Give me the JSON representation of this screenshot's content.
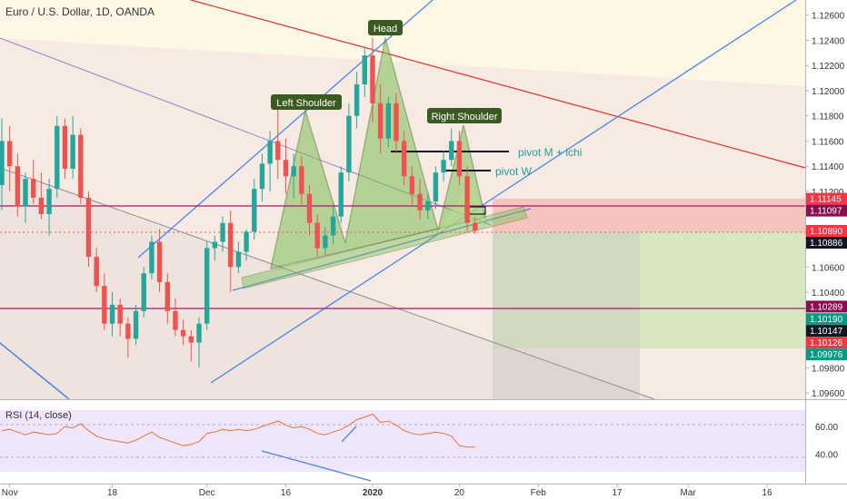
{
  "header": {
    "symbol_title": "Euro / U.S. Dollar, 1D, OANDA"
  },
  "rsi_panel": {
    "title": "RSI (14, close)",
    "ticks": [
      "60.00",
      "40.00"
    ],
    "tick_values": [
      60,
      40
    ],
    "range": [
      27,
      72
    ]
  },
  "x_axis": {
    "labels": [
      "Nov",
      "18",
      "Dec",
      "16",
      "2020",
      "20",
      "Feb",
      "17",
      "Mar",
      "16"
    ],
    "label_bars": [
      1,
      14,
      26,
      36,
      47,
      58,
      68,
      78,
      87,
      97
    ],
    "bold": [
      "2020"
    ]
  },
  "annotations": {
    "head": "Head",
    "left_shoulder": "Left Shoulder",
    "right_shoulder": "Right Shoulder",
    "pivot_m": "pivot M + ichi",
    "pivot_w": "pivot W"
  },
  "price_axis": {
    "ticks": [
      "1.12600",
      "1.12400",
      "1.12200",
      "1.12000",
      "1.11800",
      "1.11600",
      "1.11400",
      "1.11200",
      "1.10600",
      "1.10400",
      "1.09800",
      "1.09600"
    ],
    "badges": [
      {
        "label": "1.11145",
        "value": 1.11145,
        "color": "#f23645"
      },
      {
        "label": "1.11097",
        "value": 1.11097,
        "color": "#880e4f"
      },
      {
        "label": "1.10890",
        "value": 1.1089,
        "color": "#f23645"
      },
      {
        "label": "1.10886",
        "value": 1.10886,
        "color": "#131722"
      },
      {
        "label": "1.10289",
        "value": 1.10289,
        "color": "#880e4f"
      },
      {
        "label": "1.10190",
        "value": 1.1019,
        "color": "#089981"
      },
      {
        "label": "1.10147",
        "value": 1.10147,
        "color": "#131722"
      },
      {
        "label": "1.10126",
        "value": 1.10126,
        "color": "#f23645"
      },
      {
        "label": "1.09976",
        "value": 1.09976,
        "color": "#089981"
      }
    ]
  },
  "chart_data": {
    "type": "candlestick",
    "title": "Euro / U.S. Dollar, 1D, OANDA",
    "ylim": [
      1.0955,
      1.1272
    ],
    "candles": [
      [
        1.1125,
        1.1178,
        1.1105,
        1.116
      ],
      [
        1.116,
        1.1172,
        1.112,
        1.114
      ],
      [
        1.114,
        1.115,
        1.11,
        1.1108
      ],
      [
        1.1108,
        1.1135,
        1.1095,
        1.113
      ],
      [
        1.113,
        1.1145,
        1.111,
        1.1115
      ],
      [
        1.1115,
        1.1135,
        1.1098,
        1.1102
      ],
      [
        1.1102,
        1.113,
        1.1085,
        1.1122
      ],
      [
        1.1122,
        1.118,
        1.1115,
        1.1172
      ],
      [
        1.1172,
        1.1178,
        1.113,
        1.1138
      ],
      [
        1.1138,
        1.118,
        1.113,
        1.1165
      ],
      [
        1.1165,
        1.117,
        1.111,
        1.1115
      ],
      [
        1.1115,
        1.112,
        1.106,
        1.1068
      ],
      [
        1.1068,
        1.1075,
        1.104,
        1.1045
      ],
      [
        1.1045,
        1.1055,
        1.101,
        1.1015
      ],
      [
        1.1015,
        1.104,
        1.1005,
        1.103
      ],
      [
        1.103,
        1.1035,
        1.1005,
        1.1015
      ],
      [
        1.1015,
        1.102,
        1.0988,
        1.1003
      ],
      [
        1.1003,
        1.103,
        1.0998,
        1.1025
      ],
      [
        1.1025,
        1.106,
        1.102,
        1.1055
      ],
      [
        1.1055,
        1.1085,
        1.105,
        1.108
      ],
      [
        1.108,
        1.109,
        1.104,
        1.1048
      ],
      [
        1.1048,
        1.1055,
        1.1015,
        1.1025
      ],
      [
        1.1025,
        1.1035,
        1.1005,
        1.101
      ],
      [
        1.101,
        1.1018,
        1.0998,
        1.1005
      ],
      [
        1.1005,
        1.101,
        1.0985,
        1.1
      ],
      [
        1.1,
        1.102,
        1.098,
        1.1015
      ],
      [
        1.1015,
        1.108,
        1.101,
        1.1075
      ],
      [
        1.1075,
        1.1085,
        1.1065,
        1.108
      ],
      [
        1.108,
        1.11,
        1.1072,
        1.1095
      ],
      [
        1.1095,
        1.1105,
        1.104,
        1.106
      ],
      [
        1.106,
        1.108,
        1.1055,
        1.1072
      ],
      [
        1.1072,
        1.109,
        1.1065,
        1.1088
      ],
      [
        1.1088,
        1.113,
        1.1082,
        1.1122
      ],
      [
        1.1122,
        1.115,
        1.1112,
        1.1142
      ],
      [
        1.1142,
        1.1168,
        1.112,
        1.116
      ],
      [
        1.116,
        1.1185,
        1.113,
        1.1145
      ],
      [
        1.1145,
        1.1162,
        1.1118,
        1.1132
      ],
      [
        1.1132,
        1.115,
        1.1115,
        1.114
      ],
      [
        1.114,
        1.1148,
        1.111,
        1.1118
      ],
      [
        1.1118,
        1.1125,
        1.1085,
        1.1095
      ],
      [
        1.1095,
        1.1102,
        1.1068,
        1.1075
      ],
      [
        1.1075,
        1.1092,
        1.107,
        1.1085
      ],
      [
        1.1085,
        1.111,
        1.1078,
        1.11
      ],
      [
        1.11,
        1.114,
        1.1095,
        1.1135
      ],
      [
        1.1135,
        1.119,
        1.1128,
        1.118
      ],
      [
        1.118,
        1.1215,
        1.117,
        1.1205
      ],
      [
        1.1205,
        1.1235,
        1.1195,
        1.1228
      ],
      [
        1.1228,
        1.1242,
        1.1175,
        1.119
      ],
      [
        1.119,
        1.1205,
        1.115,
        1.1162
      ],
      [
        1.1162,
        1.1195,
        1.1155,
        1.119
      ],
      [
        1.119,
        1.1198,
        1.115,
        1.116
      ],
      [
        1.116,
        1.1168,
        1.1125,
        1.1132
      ],
      [
        1.1132,
        1.114,
        1.111,
        1.1118
      ],
      [
        1.1118,
        1.113,
        1.1098,
        1.1105
      ],
      [
        1.1105,
        1.1118,
        1.1098,
        1.1112
      ],
      [
        1.1112,
        1.114,
        1.1106,
        1.1135
      ],
      [
        1.1135,
        1.1152,
        1.1128,
        1.1145
      ],
      [
        1.1145,
        1.117,
        1.114,
        1.116
      ],
      [
        1.116,
        1.1168,
        1.1125,
        1.1132
      ],
      [
        1.1132,
        1.114,
        1.1088,
        1.1095
      ],
      [
        1.1095,
        1.11,
        1.1086,
        1.1089
      ]
    ],
    "candle_colors": {
      "up": "#26a69a",
      "down": "#ef5350"
    },
    "horizontal_lines": [
      {
        "value": 1.11097,
        "color": "#880e4f"
      },
      {
        "value": 1.10289,
        "color": "#880e4f"
      }
    ],
    "rsi": [
      57,
      58,
      56,
      54,
      56,
      55,
      54,
      55,
      60,
      59,
      62,
      57,
      53,
      51,
      50,
      49,
      48,
      50,
      53,
      56,
      52,
      50,
      48,
      46,
      47,
      49,
      55,
      56,
      58,
      57,
      58,
      57,
      58,
      60,
      62,
      64,
      61,
      59,
      60,
      58,
      55,
      54,
      56,
      58,
      61,
      65,
      67,
      69,
      63,
      64,
      61,
      57,
      55,
      54,
      55,
      56,
      55,
      53,
      46,
      45,
      45
    ]
  }
}
